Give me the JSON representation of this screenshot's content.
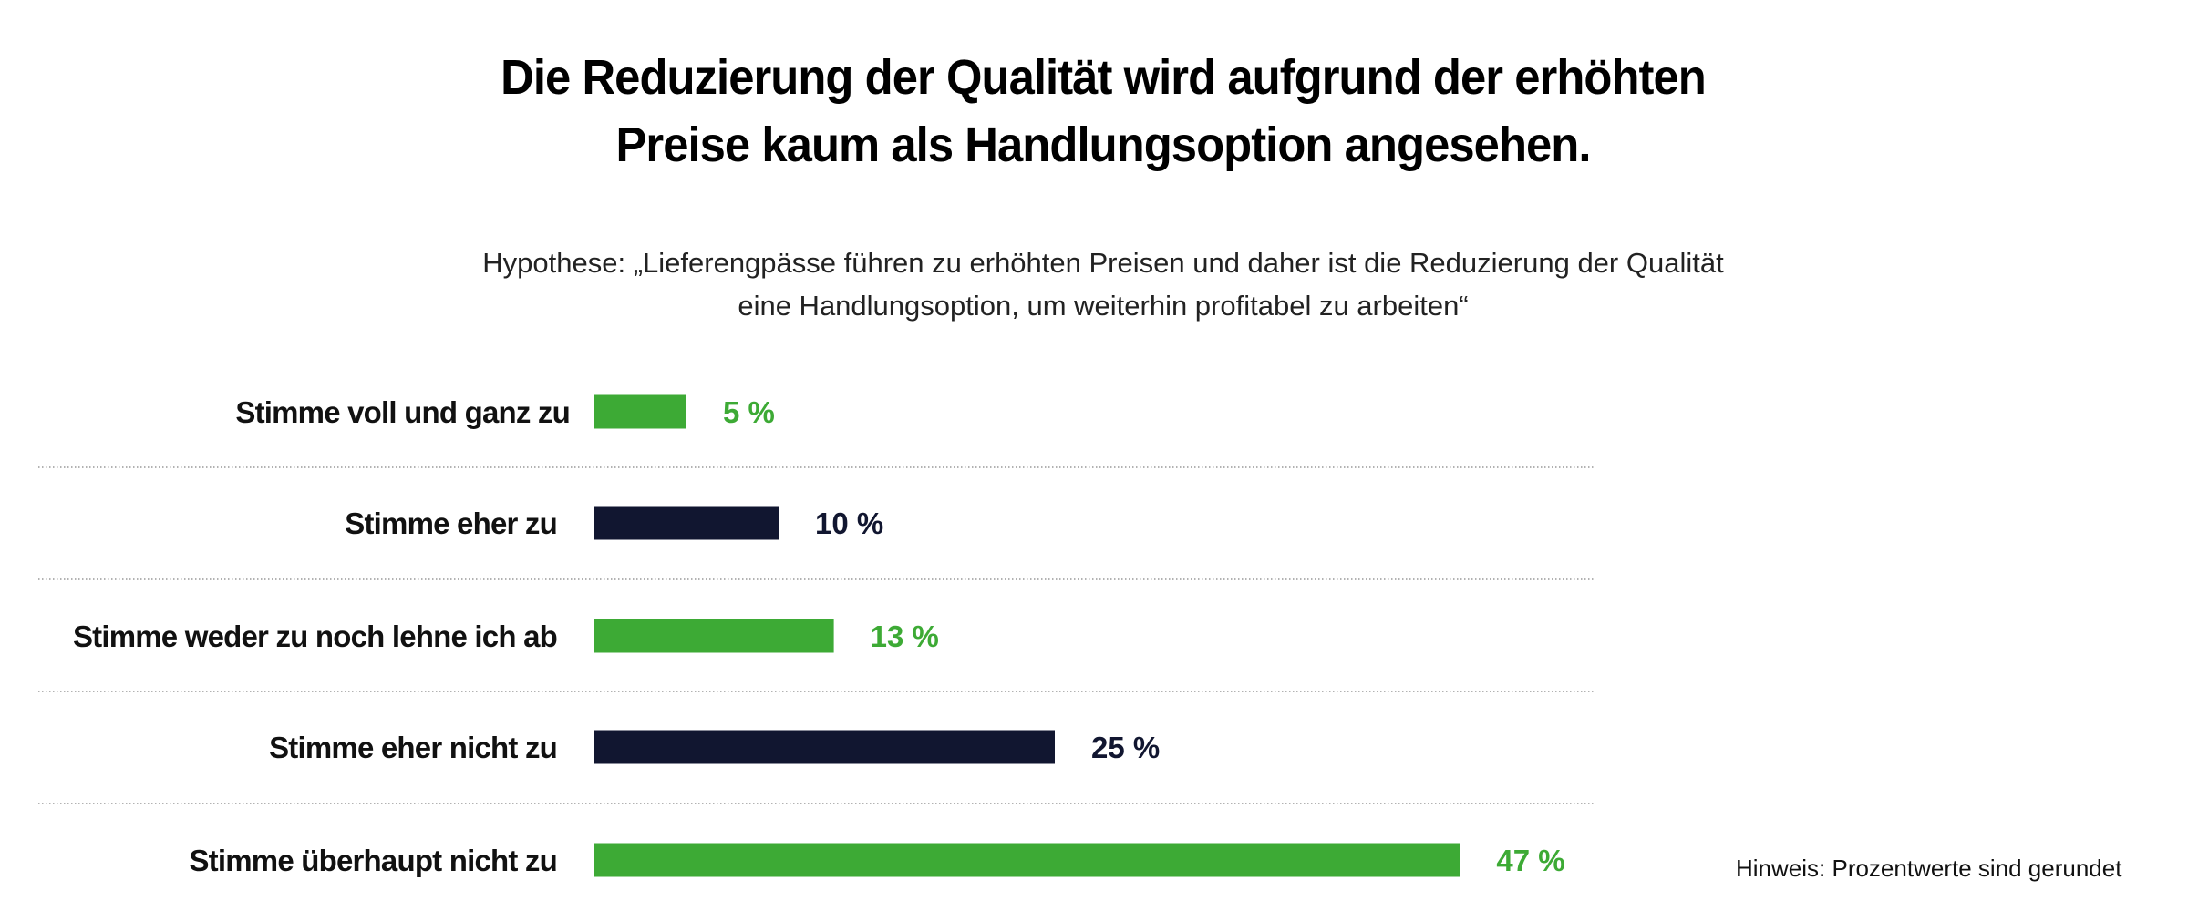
{
  "chart_data": {
    "type": "bar",
    "orientation": "horizontal",
    "title": [
      "Die Reduzierung der Qualität wird aufgrund der erhöhten",
      "Preise kaum als Handlungsoption angesehen."
    ],
    "subtitle": [
      "Hypothese: „Lieferengpässe führen zu erhöhten Preisen und daher ist die Reduzierung der Qualität",
      "eine Handlungsoption, um weiterhin profitabel zu arbeiten“"
    ],
    "categories": [
      "Stimme voll und ganz zu",
      "Stimme eher zu",
      "Stimme weder zu noch lehne ich ab",
      "Stimme eher nicht zu",
      "Stimme überhaupt nicht zu"
    ],
    "values": [
      5,
      10,
      13,
      25,
      47
    ],
    "value_labels": [
      "5 %",
      "10 %",
      "13 %",
      "25 %",
      "47 %"
    ],
    "bar_colors": [
      "#3daa35",
      "#111630",
      "#3daa35",
      "#111630",
      "#3daa35"
    ],
    "unit": "%",
    "grid": false,
    "separators": "dotted",
    "note": "Hinweis: Prozentwerte sind gerundet"
  }
}
